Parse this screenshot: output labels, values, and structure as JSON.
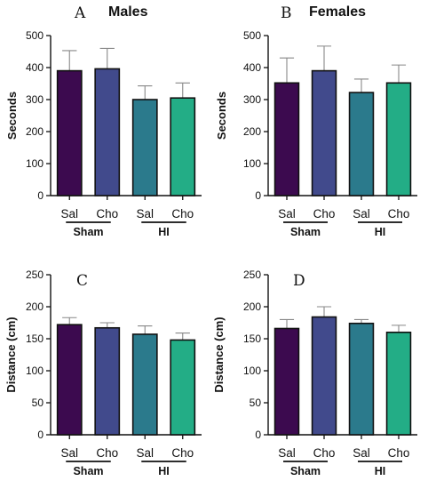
{
  "colors": {
    "Sal_Sham": "#3c0a4f",
    "Cho_Sham": "#414a8c",
    "Sal_HI": "#2b7a8c",
    "Cho_HI": "#23ad86"
  },
  "chart_data": [
    {
      "type": "bar",
      "letter": "A",
      "title": "Males",
      "ylabel": "Seconds",
      "ylim": [
        0,
        500
      ],
      "yticks": [
        0,
        100,
        200,
        300,
        400,
        500
      ],
      "categories": [
        "Sal",
        "Cho",
        "Sal",
        "Cho"
      ],
      "groups": [
        {
          "label": "Sham",
          "members": [
            0,
            1
          ]
        },
        {
          "label": "HI",
          "members": [
            2,
            3
          ]
        }
      ],
      "values": [
        390,
        396,
        300,
        305
      ],
      "errors": [
        63,
        64,
        43,
        47
      ],
      "grid": false
    },
    {
      "type": "bar",
      "letter": "B",
      "title": "Females",
      "ylabel": "Seconds",
      "ylim": [
        0,
        500
      ],
      "yticks": [
        0,
        100,
        200,
        300,
        400,
        500
      ],
      "categories": [
        "Sal",
        "Cho",
        "Sal",
        "Cho"
      ],
      "groups": [
        {
          "label": "Sham",
          "members": [
            0,
            1
          ]
        },
        {
          "label": "HI",
          "members": [
            2,
            3
          ]
        }
      ],
      "values": [
        352,
        390,
        322,
        352
      ],
      "errors": [
        78,
        77,
        42,
        56
      ],
      "grid": false
    },
    {
      "type": "bar",
      "letter": "C",
      "title": "",
      "ylabel": "Distance (cm)",
      "ylim": [
        0,
        250
      ],
      "yticks": [
        0,
        50,
        100,
        150,
        200,
        250
      ],
      "categories": [
        "Sal",
        "Cho",
        "Sal",
        "Cho"
      ],
      "groups": [
        {
          "label": "Sham",
          "members": [
            0,
            1
          ]
        },
        {
          "label": "HI",
          "members": [
            2,
            3
          ]
        }
      ],
      "values": [
        172,
        167,
        157,
        148
      ],
      "errors": [
        11,
        8,
        13,
        11
      ],
      "grid": false
    },
    {
      "type": "bar",
      "letter": "D",
      "title": "",
      "ylabel": "Distance (cm)",
      "ylim": [
        0,
        250
      ],
      "yticks": [
        0,
        50,
        100,
        150,
        200,
        250
      ],
      "categories": [
        "Sal",
        "Cho",
        "Sal",
        "Cho"
      ],
      "groups": [
        {
          "label": "Sham",
          "members": [
            0,
            1
          ]
        },
        {
          "label": "HI",
          "members": [
            2,
            3
          ]
        }
      ],
      "values": [
        166,
        184,
        174,
        160
      ],
      "errors": [
        14,
        16,
        6,
        11
      ],
      "grid": false
    }
  ]
}
